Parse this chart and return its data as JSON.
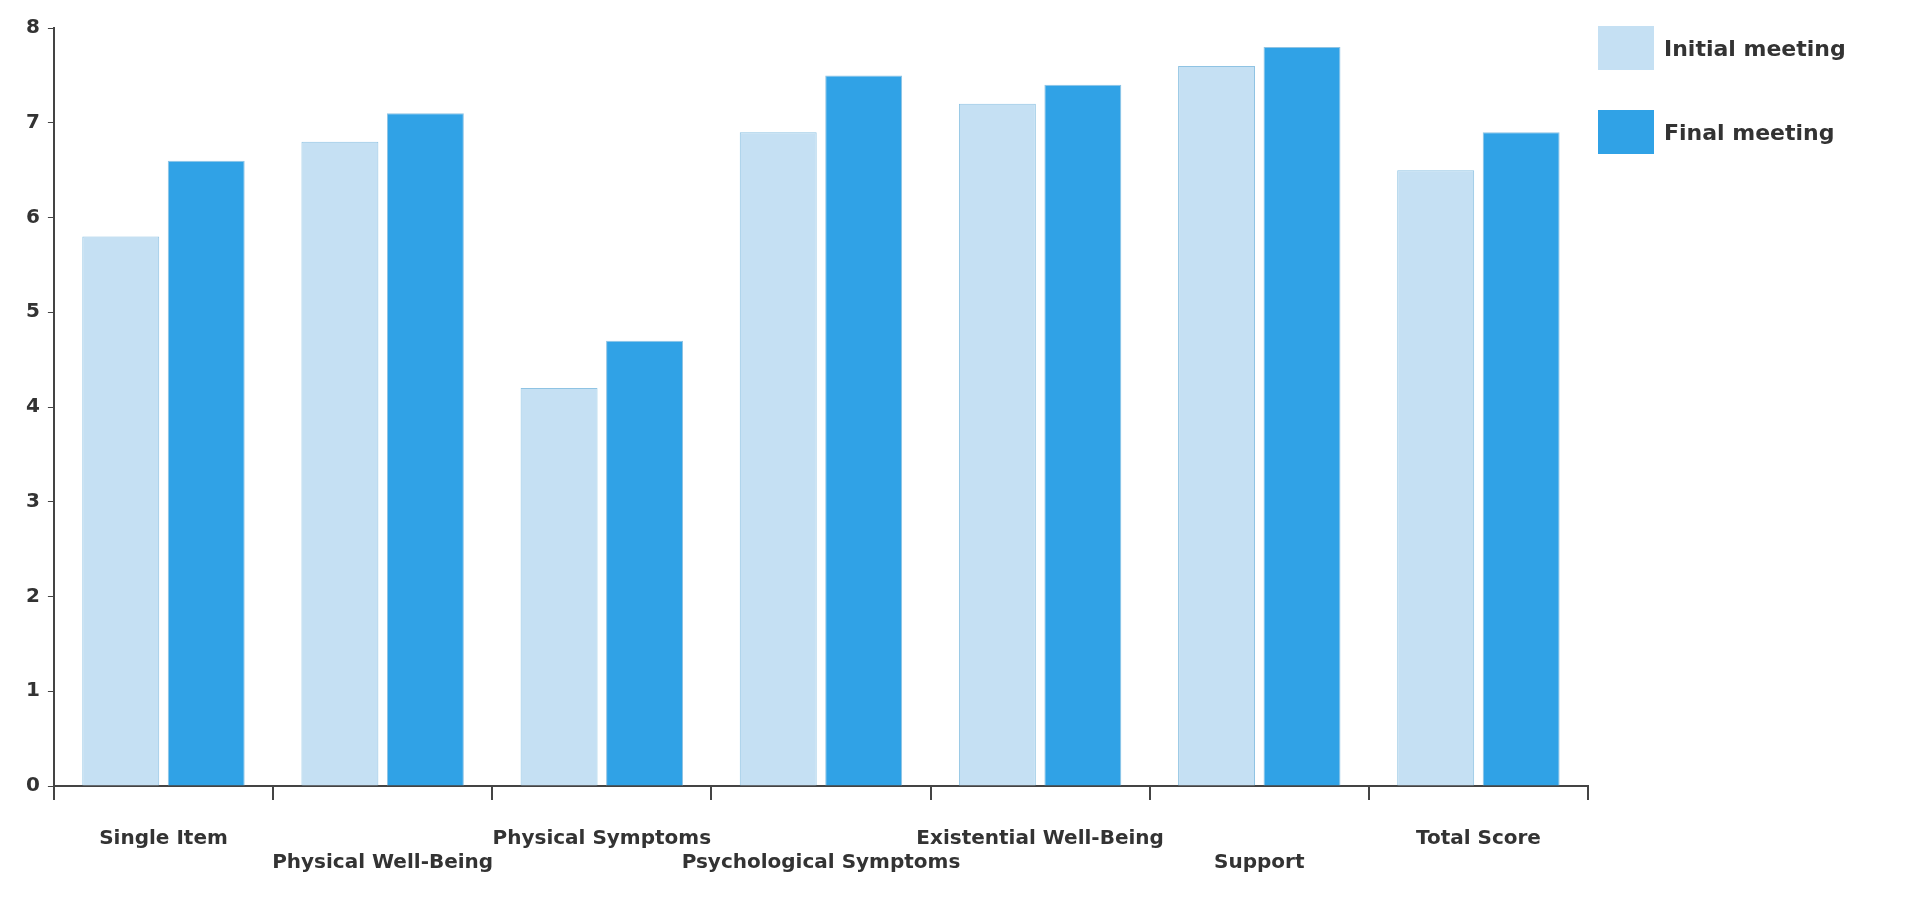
{
  "chart_data": {
    "type": "bar",
    "categories": [
      "Single Item",
      "Physical Well-Being",
      "Physical Symptoms",
      "Psychological Symptoms",
      "Existential Well-Being",
      "Support",
      "Total Score"
    ],
    "series": [
      {
        "name": "Initial meeting",
        "color": "#c5e0f3",
        "values": [
          5.8,
          6.8,
          4.2,
          6.9,
          7.2,
          7.6,
          6.5
        ]
      },
      {
        "name": "Final meeting",
        "color": "#30a2e6",
        "values": [
          6.6,
          7.1,
          4.7,
          7.5,
          7.4,
          7.8,
          6.9
        ]
      }
    ],
    "ylim": [
      0,
      8
    ],
    "yticks": [
      0,
      1,
      2,
      3,
      4,
      5,
      6,
      7,
      8
    ],
    "grid": false,
    "legend": "top right"
  }
}
